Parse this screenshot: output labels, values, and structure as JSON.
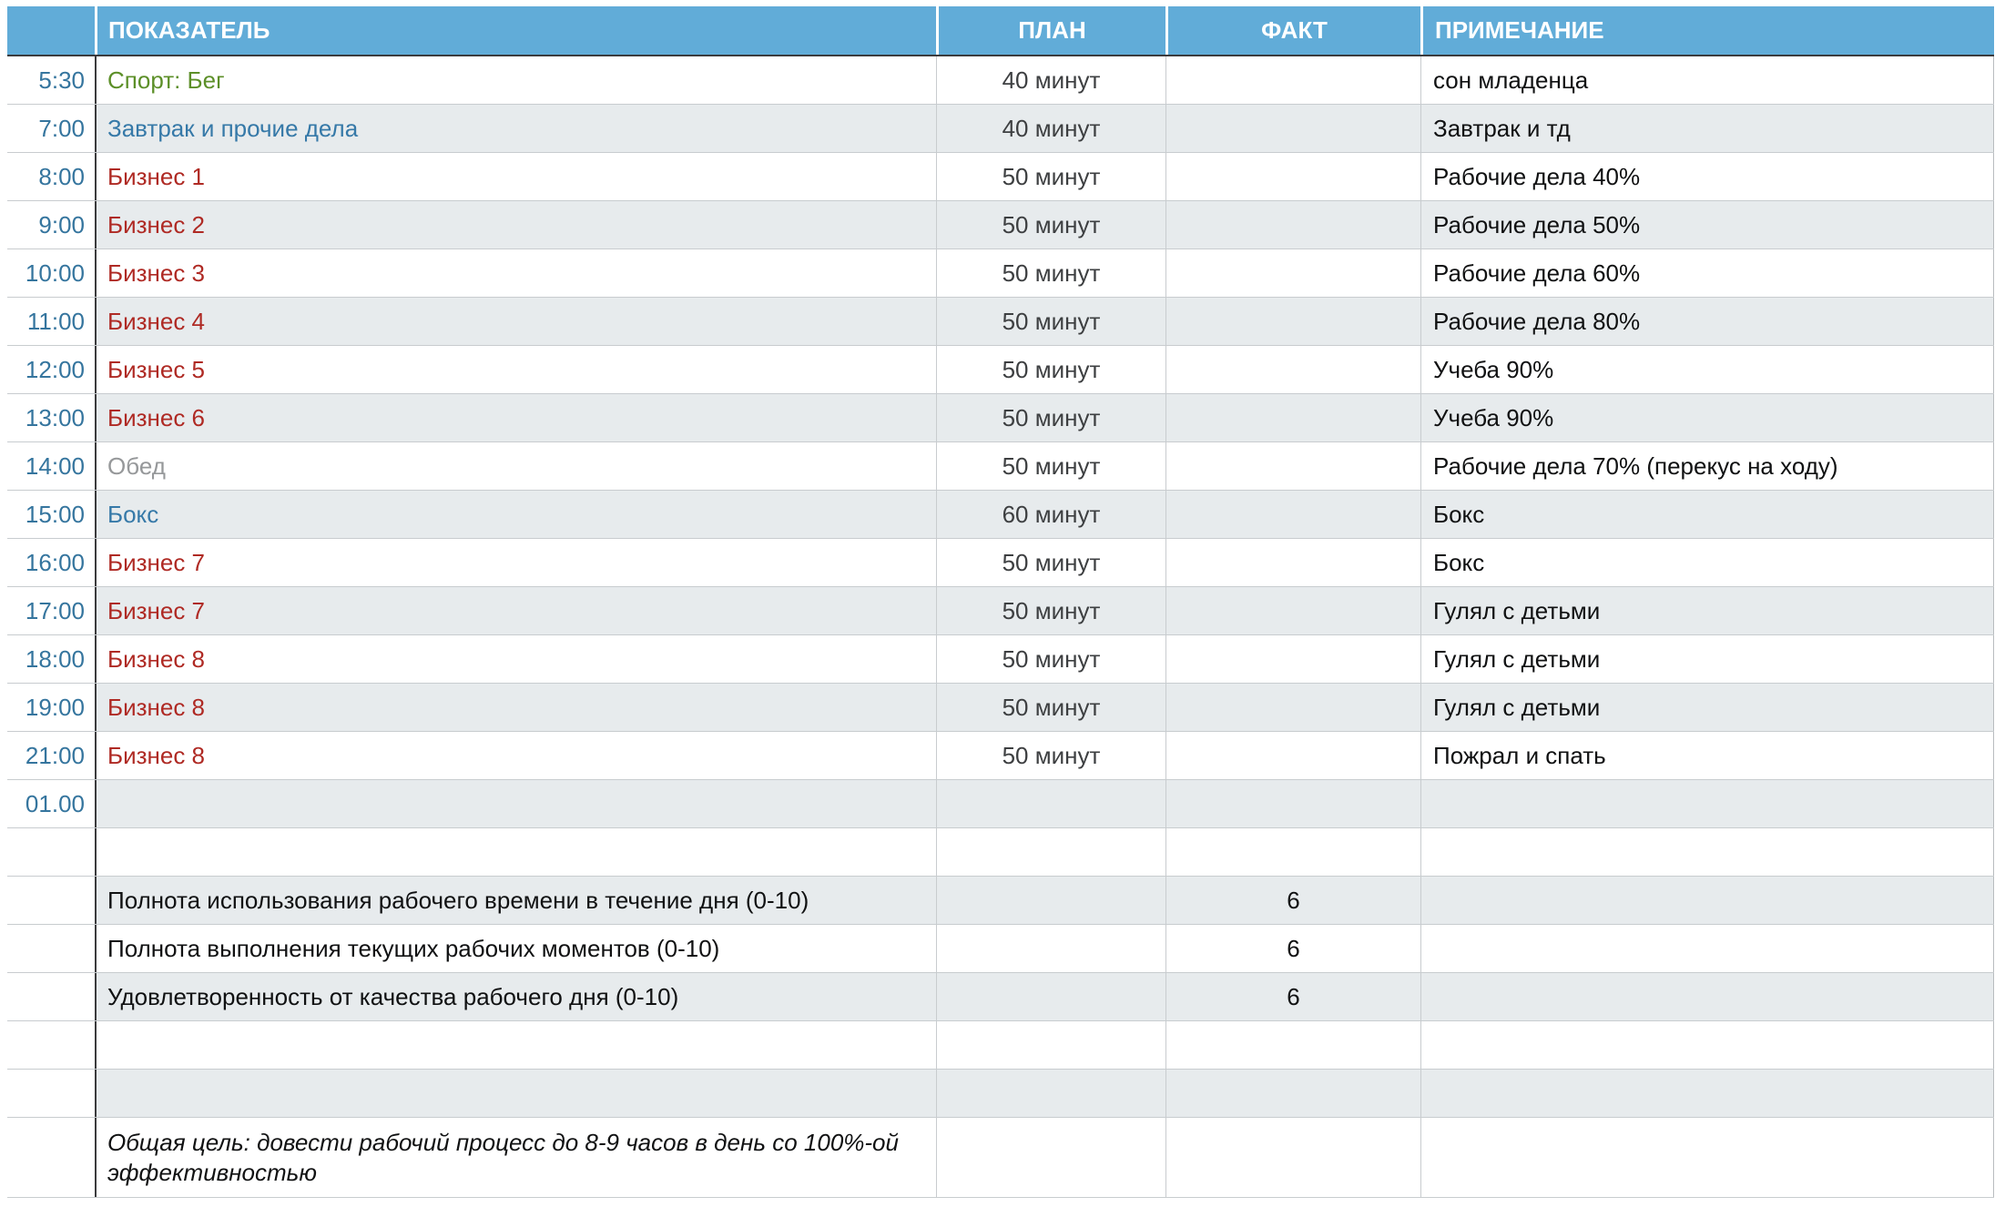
{
  "table": {
    "header": {
      "indicator": "ПОКАЗАТЕЛЬ",
      "plan": "ПЛАН",
      "fact": "ФАКТ",
      "note": "ПРИМЕЧАНИЕ"
    },
    "rows": [
      {
        "time": "5:30",
        "indicator": "Спорт: Бег",
        "style": "green",
        "plan": "40 минут",
        "fact": "",
        "note": "сон младенца",
        "shade": "white"
      },
      {
        "time": "7:00",
        "indicator": "Завтрак и прочие дела",
        "style": "blue",
        "plan": "40 минут",
        "fact": "",
        "note": "Завтрак и тд",
        "shade": "gray"
      },
      {
        "time": "8:00",
        "indicator": "Бизнес 1",
        "style": "red",
        "plan": "50 минут",
        "fact": "",
        "note": "Рабочие дела 40%",
        "shade": "white"
      },
      {
        "time": "9:00",
        "indicator": "Бизнес 2",
        "style": "red",
        "plan": "50 минут",
        "fact": "",
        "note": "Рабочие дела 50%",
        "shade": "gray"
      },
      {
        "time": "10:00",
        "indicator": "Бизнес 3",
        "style": "red",
        "plan": "50 минут",
        "fact": "",
        "note": "Рабочие дела 60%",
        "shade": "white"
      },
      {
        "time": "11:00",
        "indicator": "Бизнес 4",
        "style": "red",
        "plan": "50 минут",
        "fact": "",
        "note": "Рабочие дела 80%",
        "shade": "gray"
      },
      {
        "time": "12:00",
        "indicator": "Бизнес 5",
        "style": "red",
        "plan": "50 минут",
        "fact": "",
        "note": "Учеба 90%",
        "shade": "white"
      },
      {
        "time": "13:00",
        "indicator": "Бизнес 6",
        "style": "red",
        "plan": "50 минут",
        "fact": "",
        "note": "Учеба 90%",
        "shade": "gray"
      },
      {
        "time": "14:00",
        "indicator": "Обед",
        "style": "muted",
        "plan": "50 минут",
        "fact": "",
        "note": "Рабочие дела 70% (перекус на ходу)",
        "shade": "white"
      },
      {
        "time": "15:00",
        "indicator": "Бокс",
        "style": "blue",
        "plan": "60 минут",
        "fact": "",
        "note": "Бокс",
        "shade": "gray"
      },
      {
        "time": "16:00",
        "indicator": "Бизнес 7",
        "style": "red",
        "plan": "50 минут",
        "fact": "",
        "note": "Бокс",
        "shade": "white"
      },
      {
        "time": "17:00",
        "indicator": "Бизнес 7",
        "style": "red",
        "plan": "50 минут",
        "fact": "",
        "note": "Гулял с детьми",
        "shade": "gray"
      },
      {
        "time": "18:00",
        "indicator": "Бизнес 8",
        "style": "red",
        "plan": "50 минут",
        "fact": "",
        "note": "Гулял с детьми",
        "shade": "white"
      },
      {
        "time": "19:00",
        "indicator": "Бизнес 8",
        "style": "red",
        "plan": "50 минут",
        "fact": "",
        "note": "Гулял с детьми",
        "shade": "gray"
      },
      {
        "time": "21:00",
        "indicator": "Бизнес 8",
        "style": "red",
        "plan": "50 минут",
        "fact": "",
        "note": "Пожрал и спать",
        "shade": "white"
      },
      {
        "time": "01.00",
        "indicator": "",
        "style": "plain",
        "plan": "",
        "fact": "",
        "note": "",
        "shade": "gray"
      },
      {
        "time": "",
        "indicator": "",
        "style": "plain",
        "plan": "",
        "fact": "",
        "note": "",
        "shade": "white"
      },
      {
        "time": "",
        "indicator": "Полнота использования рабочего времени в течение дня (0-10)",
        "style": "plain",
        "plan": "",
        "fact": "6",
        "note": "",
        "shade": "gray"
      },
      {
        "time": "",
        "indicator": "Полнота выполнения текущих рабочих моментов (0-10)",
        "style": "plain",
        "plan": "",
        "fact": "6",
        "note": "",
        "shade": "white"
      },
      {
        "time": "",
        "indicator": "Удовлетворенность от качества рабочего дня (0-10)",
        "style": "plain",
        "plan": "",
        "fact": "6",
        "note": "",
        "shade": "gray"
      },
      {
        "time": "",
        "indicator": "",
        "style": "plain",
        "plan": "",
        "fact": "",
        "note": "",
        "shade": "white"
      },
      {
        "time": "",
        "indicator": "",
        "style": "plain",
        "plan": "",
        "fact": "",
        "note": "",
        "shade": "gray"
      },
      {
        "time": "",
        "indicator": "Общая цель: довести рабочий процесс до 8-9 часов в день со 100%-ой эффективностью",
        "style": "goal",
        "plan": "",
        "fact": "",
        "note": "",
        "shade": "white",
        "tall": true
      }
    ],
    "colors": {
      "header_bg": "#61ACD8",
      "stripe": "#E7EBED",
      "time_text": "#35759E",
      "green": "#5C8F28",
      "blue": "#3679A8",
      "red": "#AF2A24",
      "muted": "#96989A",
      "plan_text": "#3D3F41",
      "ink": "#101112",
      "border_dark": "#3B3B3D",
      "border_light": "#C8CCCF"
    }
  }
}
